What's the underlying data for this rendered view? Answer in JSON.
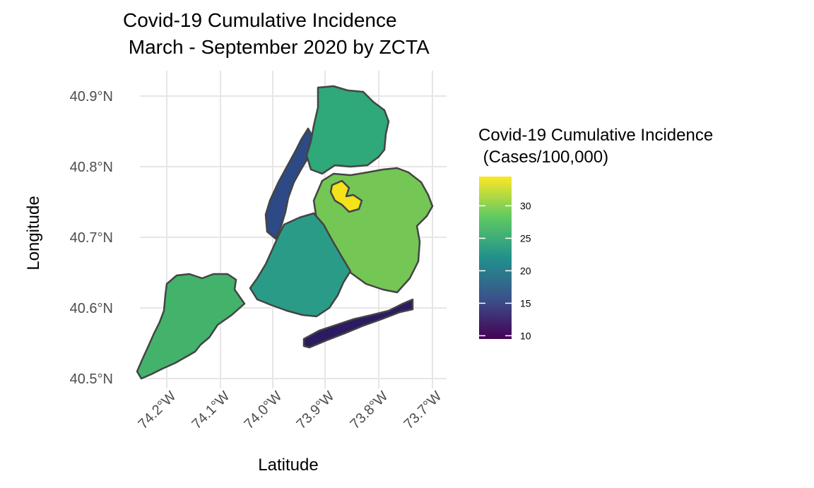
{
  "title": "Covid-19 Cumulative Incidence\n March - September 2020 by ZCTA",
  "axes": {
    "xlabel": "Latitude",
    "ylabel": "Longitude",
    "x_ticks": [
      "74.2°W",
      "74.1°W",
      "74.0°W",
      "73.9°W",
      "73.8°W",
      "73.7°W"
    ],
    "y_ticks": [
      "40.9°N",
      "40.8°N",
      "40.7°N",
      "40.6°N",
      "40.5°N"
    ]
  },
  "legend": {
    "title": "Covid-19 Cumulative Incidence\n (Cases/100,000)",
    "ticks": [
      "30",
      "25",
      "20",
      "15",
      "10"
    ],
    "palette": [
      "#fde725",
      "#5ec962",
      "#21918c",
      "#3b528b",
      "#440154"
    ]
  },
  "chart_data": {
    "type": "choropleth",
    "x_range": [
      -74.26,
      -73.69
    ],
    "y_range": [
      40.49,
      40.93
    ],
    "value_range": [
      9.5,
      34.5
    ],
    "grid": true,
    "legend_position": "right",
    "colors": {
      "staten_island": "#43b36b",
      "manhattan": "#2d4a86",
      "bronx": "#2fa87a",
      "brooklyn": "#2a9b86",
      "queens": "#74c655",
      "rockaway": "#2d1b62",
      "hotspot": "#f4e21a",
      "border": "#444444"
    }
  }
}
